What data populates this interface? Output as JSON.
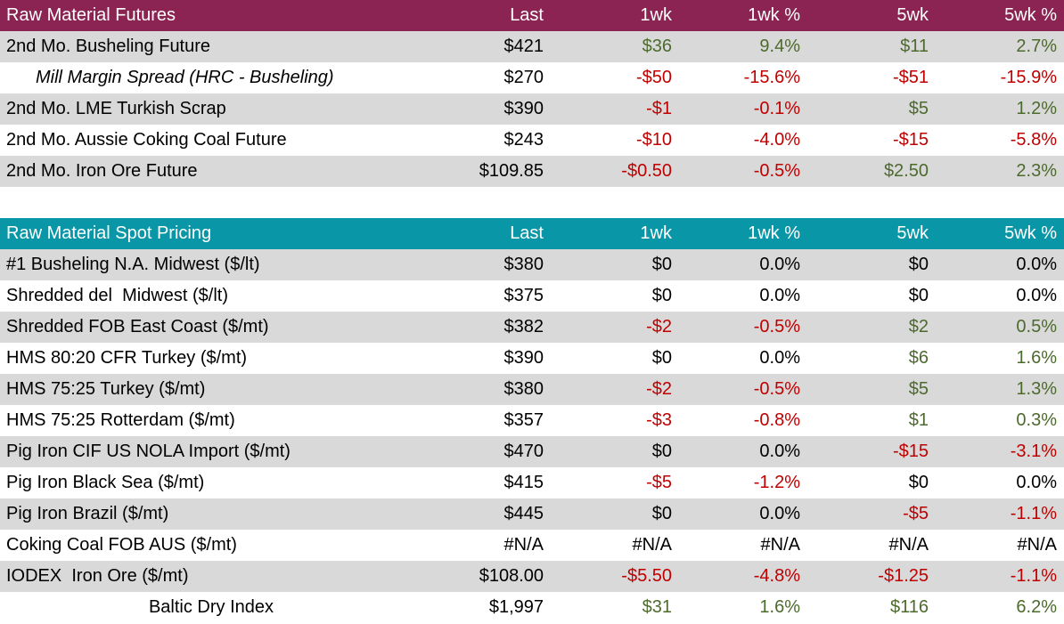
{
  "columns": [
    "Last",
    "1wk",
    "1wk %",
    "5wk",
    "5wk %"
  ],
  "colors": {
    "futures_header_bg": "#8b2452",
    "spot_header_bg": "#0997a7",
    "banded_row_bg": "#d9d9d9",
    "header_text": "#ffffff",
    "positive_value": "#4d6a2d",
    "negative_value": "#c00000",
    "neutral_value": "#000000"
  },
  "tables": [
    {
      "title": "Raw Material Futures",
      "accent": "#8b2452",
      "rows": [
        {
          "label": "2nd Mo. Busheling Future",
          "cells": [
            "$421",
            "$36",
            "9.4%",
            "$11",
            "2.7%"
          ],
          "tones": [
            "k",
            "g",
            "g",
            "g",
            "g"
          ]
        },
        {
          "label": "Mill Margin Spread (HRC - Busheling)",
          "style": "italic-indent",
          "cells": [
            "$270",
            "-$50",
            "-15.6%",
            "-$51",
            "-15.9%"
          ],
          "tones": [
            "k",
            "r",
            "r",
            "r",
            "r"
          ]
        },
        {
          "label": "2nd Mo. LME Turkish Scrap",
          "cells": [
            "$390",
            "-$1",
            "-0.1%",
            "$5",
            "1.2%"
          ],
          "tones": [
            "k",
            "r",
            "r",
            "g",
            "g"
          ]
        },
        {
          "label": "2nd Mo. Aussie Coking Coal Future",
          "cells": [
            "$243",
            "-$10",
            "-4.0%",
            "-$15",
            "-5.8%"
          ],
          "tones": [
            "k",
            "r",
            "r",
            "r",
            "r"
          ]
        },
        {
          "label": "2nd Mo. Iron Ore Future",
          "cells": [
            "$109.85",
            "-$0.50",
            "-0.5%",
            "$2.50",
            "2.3%"
          ],
          "tones": [
            "k",
            "r",
            "r",
            "g",
            "g"
          ]
        }
      ]
    },
    {
      "title": "Raw Material Spot Pricing",
      "accent": "#0997a7",
      "rows": [
        {
          "label": "#1 Busheling N.A. Midwest ($/lt)",
          "cells": [
            "$380",
            "$0",
            "0.0%",
            "$0",
            "0.0%"
          ],
          "tones": [
            "k",
            "k",
            "k",
            "k",
            "k"
          ]
        },
        {
          "label": "Shredded del  Midwest ($/lt)",
          "cells": [
            "$375",
            "$0",
            "0.0%",
            "$0",
            "0.0%"
          ],
          "tones": [
            "k",
            "k",
            "k",
            "k",
            "k"
          ]
        },
        {
          "label": "Shredded FOB East Coast ($/mt)",
          "cells": [
            "$382",
            "-$2",
            "-0.5%",
            "$2",
            "0.5%"
          ],
          "tones": [
            "k",
            "r",
            "r",
            "g",
            "g"
          ]
        },
        {
          "label": "HMS 80:20 CFR Turkey ($/mt)",
          "cells": [
            "$390",
            "$0",
            "0.0%",
            "$6",
            "1.6%"
          ],
          "tones": [
            "k",
            "k",
            "k",
            "g",
            "g"
          ]
        },
        {
          "label": "HMS 75:25 Turkey ($/mt)",
          "cells": [
            "$380",
            "-$2",
            "-0.5%",
            "$5",
            "1.3%"
          ],
          "tones": [
            "k",
            "r",
            "r",
            "g",
            "g"
          ]
        },
        {
          "label": "HMS 75:25 Rotterdam ($/mt)",
          "cells": [
            "$357",
            "-$3",
            "-0.8%",
            "$1",
            "0.3%"
          ],
          "tones": [
            "k",
            "r",
            "r",
            "g",
            "g"
          ]
        },
        {
          "label": "Pig Iron CIF US NOLA Import ($/mt)",
          "cells": [
            "$470",
            "$0",
            "0.0%",
            "-$15",
            "-3.1%"
          ],
          "tones": [
            "k",
            "k",
            "k",
            "r",
            "r"
          ]
        },
        {
          "label": "Pig Iron Black Sea ($/mt)",
          "cells": [
            "$415",
            "-$5",
            "-1.2%",
            "$0",
            "0.0%"
          ],
          "tones": [
            "k",
            "r",
            "r",
            "k",
            "k"
          ]
        },
        {
          "label": "Pig Iron Brazil ($/mt)",
          "cells": [
            "$445",
            "$0",
            "0.0%",
            "-$5",
            "-1.1%"
          ],
          "tones": [
            "k",
            "k",
            "k",
            "r",
            "r"
          ]
        },
        {
          "label": "Coking Coal FOB AUS ($/mt)",
          "cells": [
            "#N/A",
            "#N/A",
            "#N/A",
            "#N/A",
            "#N/A"
          ],
          "tones": [
            "k",
            "k",
            "k",
            "k",
            "k"
          ]
        },
        {
          "label": "IODEX  Iron Ore ($/mt)",
          "cells": [
            "$108.00",
            "-$5.50",
            "-4.8%",
            "-$1.25",
            "-1.1%"
          ],
          "tones": [
            "k",
            "r",
            "r",
            "r",
            "r"
          ]
        },
        {
          "label": "Baltic Dry Index",
          "style": "center",
          "cells": [
            "$1,997",
            "$31",
            "1.6%",
            "$116",
            "6.2%"
          ],
          "tones": [
            "k",
            "g",
            "g",
            "g",
            "g"
          ]
        }
      ]
    }
  ]
}
